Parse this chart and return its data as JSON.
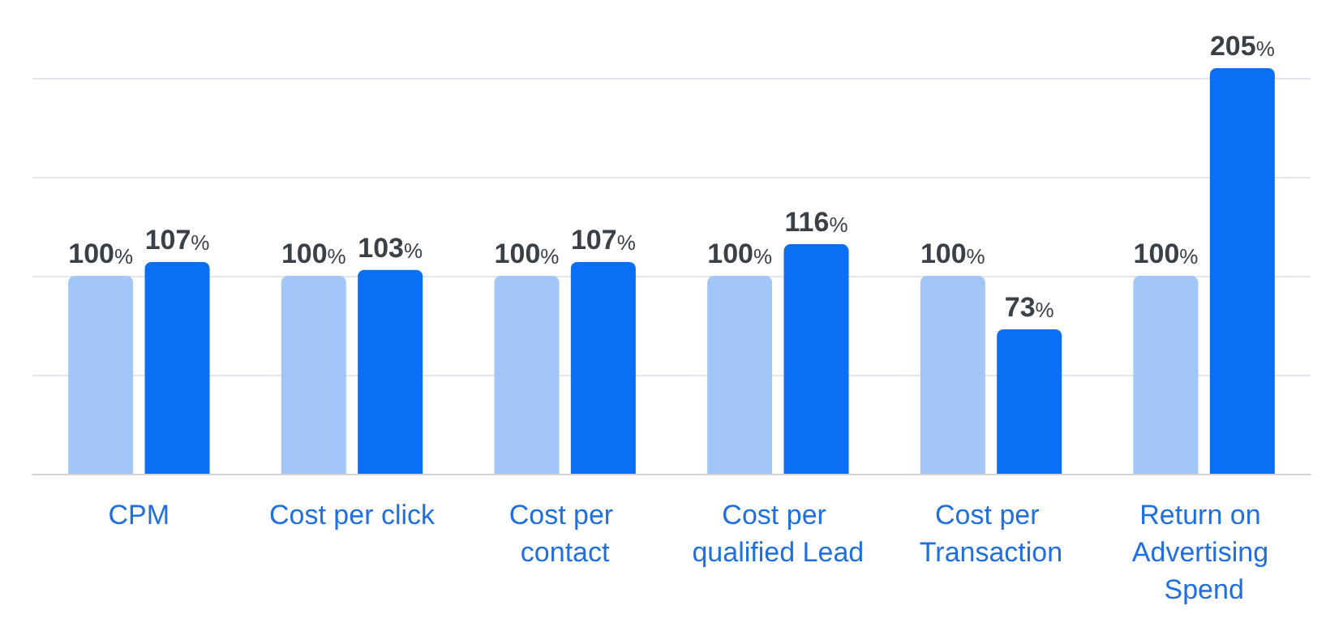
{
  "chart_data": {
    "type": "bar",
    "categories": [
      "CPM",
      "Cost per click",
      "Cost per contact",
      "Cost per qualified Lead",
      "Cost per Transaction",
      "Return on Advertising Spend"
    ],
    "series": [
      {
        "color": "#a3c6f8",
        "values": [
          100,
          100,
          100,
          100,
          100,
          100
        ],
        "value_labels": [
          "100%",
          "100%",
          "100%",
          "100%",
          "100%",
          "100%"
        ]
      },
      {
        "color": "#0a6ff5",
        "values": [
          107,
          103,
          107,
          116,
          73,
          205
        ],
        "value_labels": [
          "107%",
          "103%",
          "107%",
          "116%",
          "73%",
          "205%"
        ]
      }
    ],
    "yticks": [
      {
        "value": 0,
        "label": null
      },
      {
        "value": 50,
        "label": null
      },
      {
        "value": 100,
        "label": null
      },
      {
        "value": 150,
        "label": null
      },
      {
        "value": 200,
        "label": null
      }
    ],
    "grid": "y",
    "tick_labels": "x"
  }
}
